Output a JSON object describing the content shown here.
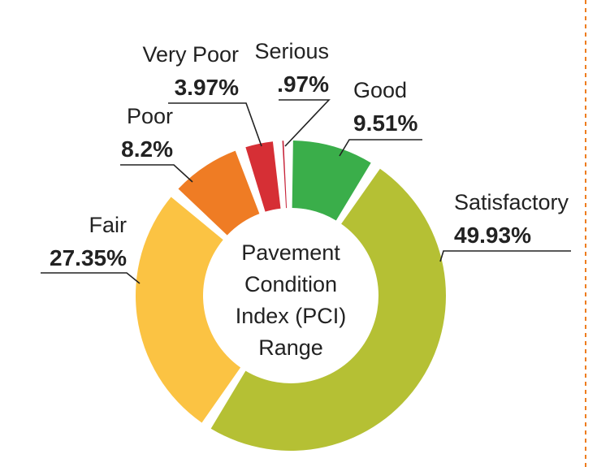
{
  "chart_data": {
    "type": "pie",
    "variant": "donut",
    "center_label": [
      "Pavement",
      "Condition",
      "Index (PCI)",
      "Range"
    ],
    "slices": [
      {
        "label": "Good",
        "value": 9.51,
        "display": "9.51%",
        "color": "#3aae4a"
      },
      {
        "label": "Satisfactory",
        "value": 49.93,
        "display": "49.93%",
        "color": "#b5c034"
      },
      {
        "label": "Fair",
        "value": 27.35,
        "display": "27.35%",
        "color": "#fbc343"
      },
      {
        "label": "Poor",
        "value": 8.2,
        "display": "8.2%",
        "color": "#ef7c24"
      },
      {
        "label": "Very Poor",
        "value": 3.97,
        "display": "3.97%",
        "color": "#d62f35"
      },
      {
        "label": "Serious",
        "value": 0.97,
        "display": ".97%",
        "color": "#c7243a"
      }
    ],
    "border_color": "#ee7d1f"
  }
}
